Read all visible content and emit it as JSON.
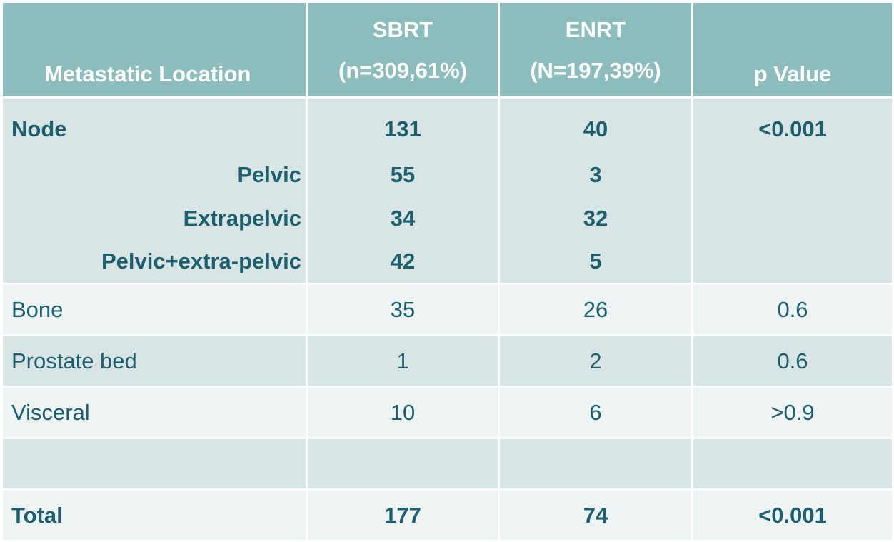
{
  "header": {
    "location": "Metastatic Location",
    "sbrt_line1": "SBRT",
    "sbrt_line2": "(n=309,61%)",
    "enrt_line1": "ENRT",
    "enrt_line2": "(N=197,39%)",
    "pvalue": "p Value"
  },
  "node": {
    "label": "Node",
    "sbrt": "131",
    "enrt": "40",
    "p": "<0.001",
    "subrows": [
      {
        "label": "Pelvic",
        "sbrt": "55",
        "enrt": "3"
      },
      {
        "label": "Extrapelvic",
        "sbrt": "34",
        "enrt": "32"
      },
      {
        "label": "Pelvic+extra-pelvic",
        "sbrt": "42",
        "enrt": "5"
      }
    ]
  },
  "rows": [
    {
      "label": "Bone",
      "sbrt": "35",
      "enrt": "26",
      "p": "0.6"
    },
    {
      "label": "Prostate bed",
      "sbrt": "1",
      "enrt": "2",
      "p": "0.6"
    },
    {
      "label": "Visceral",
      "sbrt": "10",
      "enrt": "6",
      "p": ">0.9"
    },
    {
      "label": "",
      "sbrt": "",
      "enrt": "",
      "p": ""
    }
  ],
  "total": {
    "label": "Total",
    "sbrt": "177",
    "enrt": "74",
    "p": "<0.001"
  },
  "colors": {
    "header_bg": "#8cbcbc",
    "header_text": "#ffffff",
    "body_text": "#1c5f6e",
    "row_light": "#eef3f3",
    "row_dark": "#d9e5e5"
  }
}
